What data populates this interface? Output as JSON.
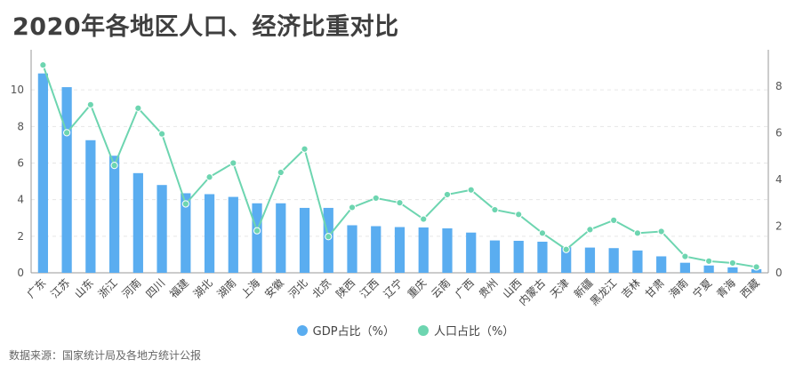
{
  "title": "2020年各地区人口、经济比重对比",
  "source": "数据来源：国家统计局及各地方统计公报",
  "colors": {
    "bar": "#5aadf0",
    "line": "#6dd5b0",
    "grid": "#e6e6e6",
    "axis": "#999999"
  },
  "legend": {
    "gdp": "GDP占比（%）",
    "pop": "人口占比（%）"
  },
  "chart_data": {
    "type": "bar",
    "title": "2020年各地区人口、经济比重对比",
    "categories": [
      "广东",
      "江苏",
      "山东",
      "浙江",
      "河南",
      "四川",
      "福建",
      "湖北",
      "湖南",
      "上海",
      "安徽",
      "河北",
      "北京",
      "陕西",
      "江西",
      "辽宁",
      "重庆",
      "云南",
      "广西",
      "贵州",
      "山西",
      "内蒙古",
      "天津",
      "新疆",
      "黑龙江",
      "吉林",
      "甘肃",
      "海南",
      "宁夏",
      "青海",
      "西藏"
    ],
    "series": [
      {
        "name": "GDP占比（%）",
        "type": "bar",
        "axis": "left",
        "values": [
          10.9,
          10.15,
          7.25,
          6.4,
          5.45,
          4.8,
          4.35,
          4.3,
          4.15,
          3.8,
          3.8,
          3.55,
          3.55,
          2.6,
          2.55,
          2.5,
          2.48,
          2.43,
          2.2,
          1.77,
          1.75,
          1.7,
          1.4,
          1.38,
          1.35,
          1.22,
          0.9,
          0.55,
          0.4,
          0.3,
          0.2
        ]
      },
      {
        "name": "人口占比（%）",
        "type": "line",
        "axis": "right",
        "values": [
          8.9,
          6.0,
          7.2,
          4.6,
          7.05,
          5.95,
          2.95,
          4.1,
          4.7,
          1.8,
          4.3,
          5.3,
          1.55,
          2.8,
          3.2,
          3.0,
          2.3,
          3.35,
          3.55,
          2.7,
          2.5,
          1.7,
          1.0,
          1.85,
          2.25,
          1.7,
          1.77,
          0.7,
          0.5,
          0.42,
          0.25
        ]
      }
    ],
    "yLeft": {
      "ylim": [
        0,
        12
      ],
      "ticks": [
        0,
        2,
        4,
        6,
        8,
        10
      ]
    },
    "yRight": {
      "ylim": [
        0,
        9.4
      ],
      "ticks": [
        0,
        2,
        4,
        6,
        8
      ]
    },
    "grid": true,
    "legend": "bottom-center"
  }
}
